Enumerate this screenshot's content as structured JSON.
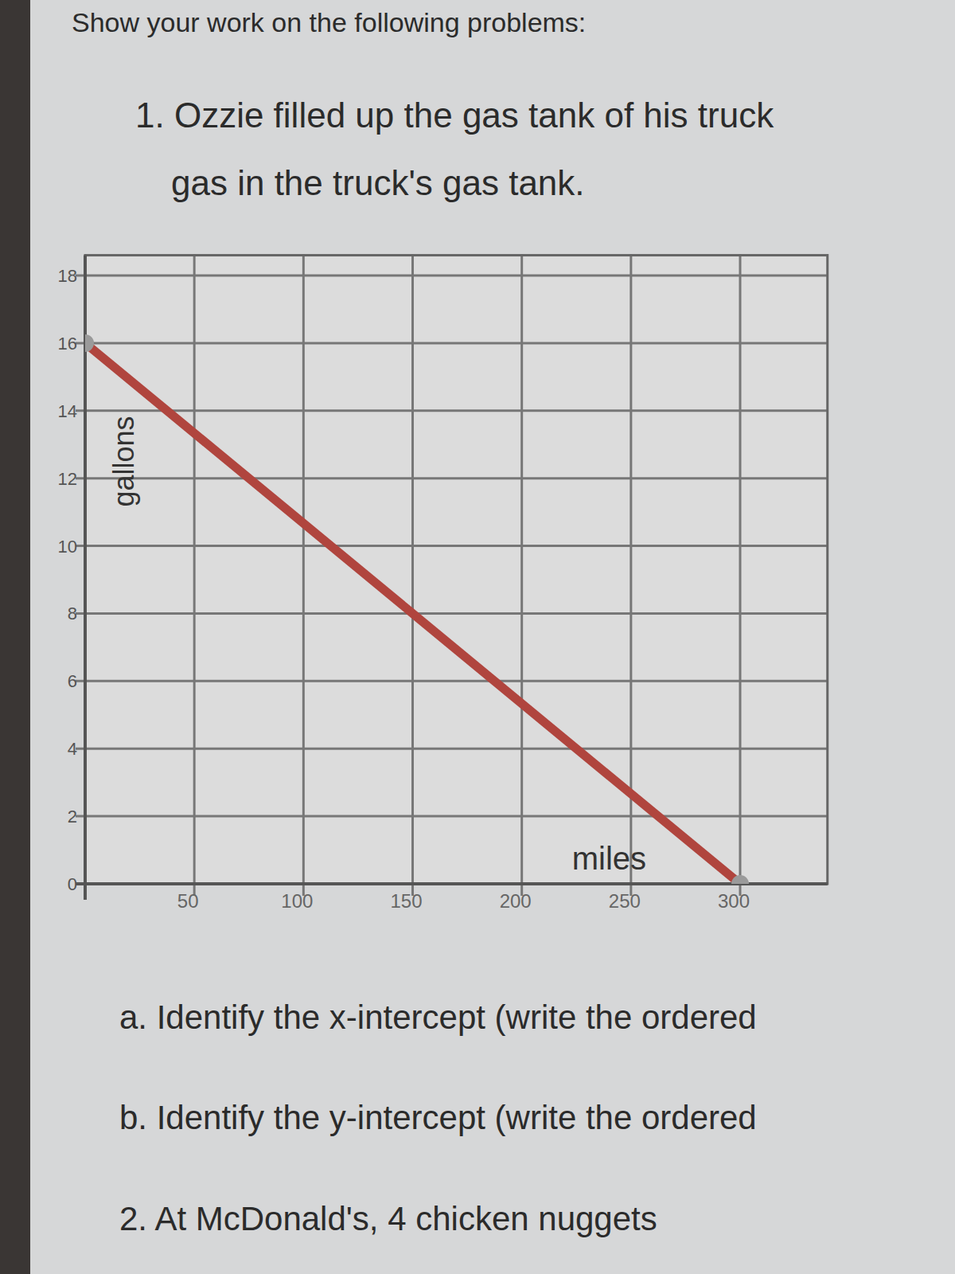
{
  "page": {
    "header": "Show your work on the following problems:",
    "problem1": [
      "1. Ozzie filled up the gas tank of his truck",
      "gas in the truck's gas tank."
    ],
    "questions": [
      "a. Identify the x-intercept (write the ordered",
      "b. Identify the y-intercept (write the ordered",
      "2. At McDonald's, 4 chicken nuggets"
    ]
  },
  "chart_data": {
    "type": "line",
    "x_label": "miles",
    "y_label": "gallons",
    "x": [
      0,
      300
    ],
    "series": [
      {
        "color": "#b0453e",
        "marker": "circle",
        "values": [
          16,
          0
        ]
      }
    ],
    "xlim": [
      0,
      340
    ],
    "ylim": [
      0,
      18.6
    ],
    "xticks": [
      50,
      100,
      150,
      200,
      250,
      300
    ],
    "yticks": [
      0,
      2,
      4,
      6,
      8,
      10,
      12,
      14,
      16,
      18
    ],
    "grid": true
  }
}
